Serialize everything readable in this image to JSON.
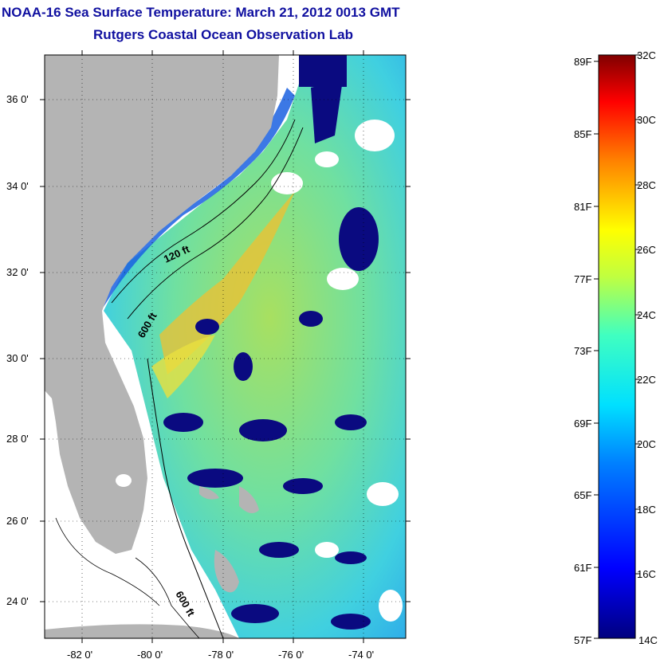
{
  "header": {
    "title": "NOAA-16 Sea Surface Temperature:  March 21, 2012 0013 GMT",
    "subtitle": "Rutgers Coastal Ocean Observation Lab"
  },
  "map": {
    "lat_labels": [
      "36 0'",
      "34 0'",
      "32 0'",
      "30 0'",
      "28 0'",
      "26 0'",
      "24 0'"
    ],
    "lon_labels": [
      "-82 0'",
      "-80 0'",
      "-78 0'",
      "-76 0'",
      "-74 0'"
    ],
    "contour_labels": [
      "120 ft",
      "600 ft",
      "600 ft"
    ],
    "colors": {
      "land": "#b4b4b4",
      "no_data": "#ffffff",
      "cloud": "#0a0a80"
    }
  },
  "colorbar": {
    "fahrenheit_labels": [
      "89F",
      "85F",
      "81F",
      "77F",
      "73F",
      "69F",
      "65F",
      "61F",
      "57F"
    ],
    "celsius_labels": [
      "32C",
      "30C",
      "28C",
      "26C",
      "24C",
      "22C",
      "20C",
      "18C",
      "16C",
      "14C"
    ],
    "range_c": [
      14,
      32
    ],
    "range_f": [
      57,
      89
    ]
  }
}
